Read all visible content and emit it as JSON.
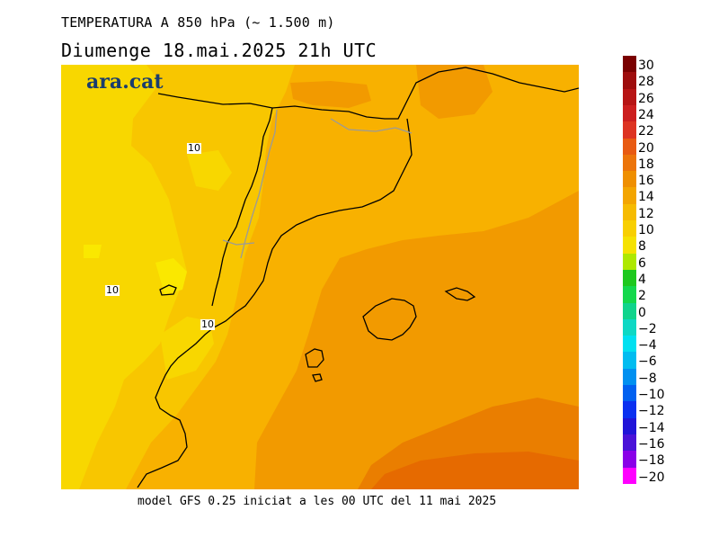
{
  "title": "TEMPERATURA A 850 hPa (~ 1.500 m)",
  "subtitle": "Diumenge  18.mai.2025 21h UTC",
  "footer": "model GFS 0.25 iniciat a les 00 UTC del 11 mai 2025",
  "logo": "ara.cat",
  "contour_labels": [
    "10",
    "10",
    "10"
  ],
  "legend": {
    "labels": [
      "30",
      "28",
      "26",
      "24",
      "22",
      "20",
      "18",
      "16",
      "14",
      "12",
      "10",
      "8",
      "6",
      "4",
      "2",
      "0",
      "-2",
      "-4",
      "-6",
      "-8",
      "-10",
      "-12",
      "-14",
      "-16",
      "-18",
      "-20"
    ],
    "colors": [
      "#7a0000",
      "#9e0d0d",
      "#b71414",
      "#cc1e1e",
      "#dd3322",
      "#e85a12",
      "#ec740a",
      "#ef8f00",
      "#f3a500",
      "#f6bb00",
      "#f8cf00",
      "#f5e200",
      "#aee800",
      "#1ec81e",
      "#14d84c",
      "#10d48c",
      "#0ed8c4",
      "#00e0f0",
      "#00bcf0",
      "#0090f0",
      "#0060f0",
      "#0a30f0",
      "#2014d8",
      "#4a12d8",
      "#8a00e8",
      "#ff00ff"
    ]
  }
}
